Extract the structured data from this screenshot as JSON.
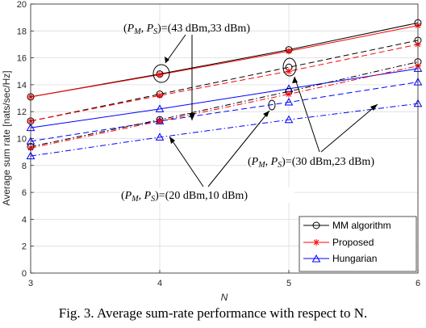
{
  "caption": "Fig. 3. Average sum-rate performance with respect to N.",
  "chart_data": {
    "type": "line",
    "xlabel": "N",
    "ylabel": "Average sum rate [nats/sec/Hz]",
    "x": [
      3,
      4,
      5,
      6
    ],
    "xlim": [
      3,
      6
    ],
    "ylim": [
      0,
      20
    ],
    "xticks": [
      "3",
      "4",
      "5",
      "6"
    ],
    "yticks": [
      "0",
      "2",
      "4",
      "6",
      "8",
      "10",
      "12",
      "14",
      "16",
      "18",
      "20"
    ],
    "grid": true,
    "legend_position": "bottom-right",
    "legend": [
      {
        "label": "MM algorithm",
        "color": "#000000",
        "marker": "circle"
      },
      {
        "label": "Proposed",
        "color": "#ff0000",
        "marker": "star"
      },
      {
        "label": "Hungarian",
        "color": "#0000ff",
        "marker": "triangle"
      }
    ],
    "series": [
      {
        "algorithm": "MM algorithm",
        "power": "43/33",
        "dash": "solid",
        "values": [
          13.1,
          14.8,
          16.6,
          18.6
        ]
      },
      {
        "algorithm": "Proposed",
        "power": "43/33",
        "dash": "solid",
        "values": [
          13.1,
          14.75,
          16.5,
          18.4
        ]
      },
      {
        "algorithm": "Hungarian",
        "power": "43/33",
        "dash": "solid",
        "values": [
          10.8,
          12.2,
          13.7,
          15.2
        ]
      },
      {
        "algorithm": "MM algorithm",
        "power": "30/23",
        "dash": "dashed",
        "values": [
          11.3,
          13.3,
          15.3,
          17.3
        ]
      },
      {
        "algorithm": "Proposed",
        "power": "30/23",
        "dash": "dashed",
        "values": [
          11.3,
          13.2,
          15.0,
          17.0
        ]
      },
      {
        "algorithm": "Hungarian",
        "power": "30/23",
        "dash": "dashed",
        "values": [
          9.8,
          11.3,
          12.7,
          14.2
        ]
      },
      {
        "algorithm": "MM algorithm",
        "power": "20/10",
        "dash": "dashdot",
        "values": [
          9.4,
          11.4,
          13.5,
          15.7
        ]
      },
      {
        "algorithm": "Proposed",
        "power": "20/10",
        "dash": "dashdot",
        "values": [
          9.3,
          11.3,
          13.3,
          15.4
        ]
      },
      {
        "algorithm": "Hungarian",
        "power": "20/10",
        "dash": "dashdot",
        "values": [
          8.7,
          10.1,
          11.4,
          12.6
        ]
      }
    ],
    "annotations": [
      {
        "name": "annotation-43dbm",
        "text": "(P_M, P_S)=(43 dBm,33 dBm)",
        "prefix": "(",
        "p1": "P",
        "s1": "M",
        "mid": ", ",
        "p2": "P",
        "s2": "S",
        "suffix": ")=(43 dBm,33 dBm)"
      },
      {
        "name": "annotation-30dbm",
        "text": "(P_M, P_S)=(30 dBm,23 dBm)",
        "prefix": "(",
        "p1": "P",
        "s1": "M",
        "mid": ", ",
        "p2": "P",
        "s2": "S",
        "suffix": ")=(30 dBm,23 dBm)"
      },
      {
        "name": "annotation-20dbm",
        "text": "(P_M, P_S)=(20 dBm,10 dBm)",
        "prefix": "(",
        "p1": "P",
        "s1": "M",
        "mid": ", ",
        "p2": "P",
        "s2": "S",
        "suffix": ")=(20 dBm,10 dBm)"
      }
    ]
  }
}
